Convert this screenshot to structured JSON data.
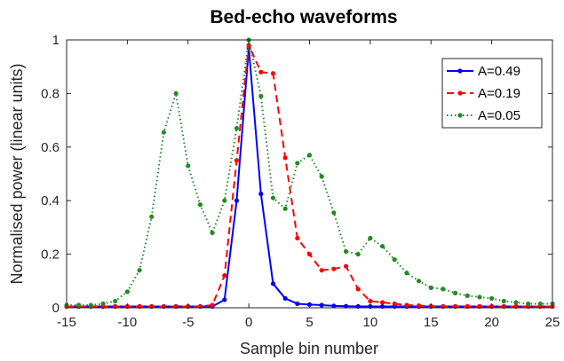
{
  "chart_data": {
    "type": "line",
    "title": "Bed-echo waveforms",
    "xlabel": "Sample bin number",
    "ylabel": "Normalised power (linear units)",
    "xlim": [
      -15,
      25
    ],
    "ylim": [
      0,
      1
    ],
    "xticks": [
      -15,
      -10,
      -5,
      0,
      5,
      10,
      15,
      20,
      25
    ],
    "yticks": [
      0,
      0.2,
      0.4,
      0.6,
      0.8,
      1
    ],
    "grid": false,
    "legend_position": "top-right",
    "x": [
      -15,
      -14,
      -13,
      -12,
      -11,
      -10,
      -9,
      -8,
      -7,
      -6,
      -5,
      -4,
      -3,
      -2,
      -1,
      0,
      1,
      2,
      3,
      4,
      5,
      6,
      7,
      8,
      9,
      10,
      11,
      12,
      13,
      14,
      15,
      16,
      17,
      18,
      19,
      20,
      21,
      22,
      23,
      24,
      25
    ],
    "series": [
      {
        "name": "A=0.49",
        "color": "#0000ff",
        "line_style": "solid",
        "values": [
          0.005,
          0.005,
          0.005,
          0.005,
          0.005,
          0.005,
          0.005,
          0.005,
          0.005,
          0.005,
          0.005,
          0.005,
          0.005,
          0.03,
          0.4,
          0.97,
          0.425,
          0.09,
          0.035,
          0.015,
          0.012,
          0.01,
          0.007,
          0.006,
          0.005,
          0.005,
          0.005,
          0.005,
          0.005,
          0.005,
          0.005,
          0.005,
          0.005,
          0.005,
          0.005,
          0.005,
          0.005,
          0.005,
          0.005,
          0.005,
          0.005
        ]
      },
      {
        "name": "A=0.19",
        "color": "#ff0000",
        "line_style": "dashed",
        "values": [
          0.005,
          0.005,
          0.005,
          0.005,
          0.005,
          0.005,
          0.005,
          0.005,
          0.005,
          0.005,
          0.005,
          0.005,
          0.01,
          0.12,
          0.55,
          0.98,
          0.88,
          0.875,
          0.56,
          0.26,
          0.2,
          0.14,
          0.145,
          0.155,
          0.07,
          0.025,
          0.02,
          0.015,
          0.01,
          0.008,
          0.006,
          0.005,
          0.005,
          0.005,
          0.005,
          0.005,
          0.005,
          0.005,
          0.005,
          0.005,
          0.005
        ]
      },
      {
        "name": "A=0.05",
        "color": "#228b22",
        "line_style": "dotted",
        "values": [
          0.01,
          0.01,
          0.01,
          0.015,
          0.025,
          0.06,
          0.14,
          0.34,
          0.655,
          0.8,
          0.53,
          0.385,
          0.28,
          0.4,
          0.67,
          1.0,
          0.79,
          0.41,
          0.37,
          0.54,
          0.57,
          0.49,
          0.355,
          0.21,
          0.2,
          0.26,
          0.23,
          0.18,
          0.13,
          0.1,
          0.075,
          0.07,
          0.055,
          0.045,
          0.04,
          0.035,
          0.025,
          0.02,
          0.015,
          0.015,
          0.015
        ]
      }
    ]
  }
}
